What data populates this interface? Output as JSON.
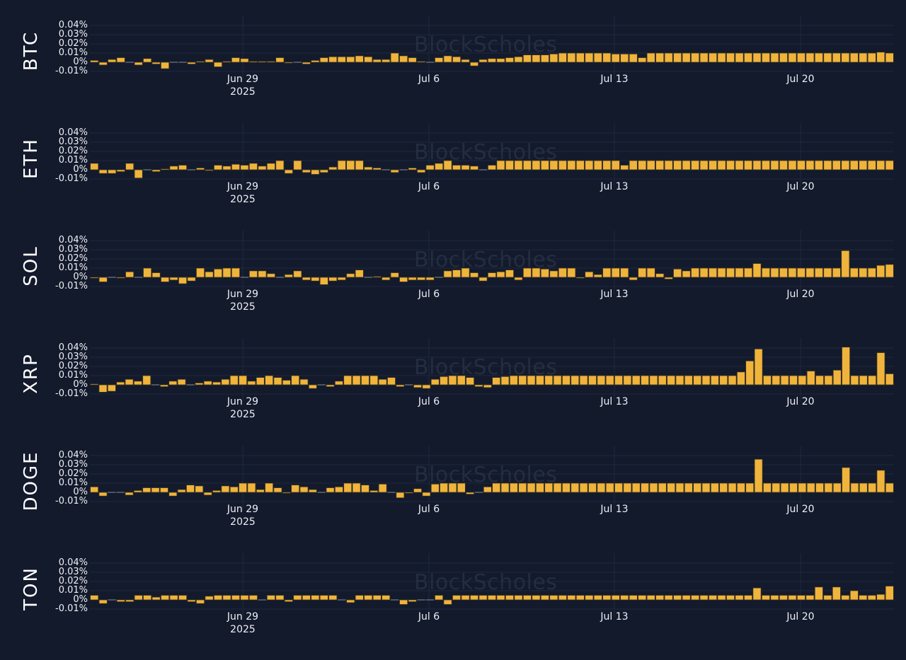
{
  "chart_meta": {
    "bar_color": "#f0b43c",
    "bar_outline": "#3b3420",
    "background": "#131a2c",
    "grid_color": "#1f2840",
    "watermark": "BlockScholes",
    "y_ticks": [
      "0.04%",
      "0.03%",
      "0.02%",
      "0.01%",
      "0%",
      "-0.01%"
    ],
    "x_ticks": [
      {
        "label": "Jun 29",
        "sub": "2025"
      },
      {
        "label": "Jul 6",
        "sub": ""
      },
      {
        "label": "Jul 13",
        "sub": ""
      },
      {
        "label": "Jul 20",
        "sub": ""
      }
    ]
  },
  "chart_data": [
    {
      "type": "bar",
      "title": "BTC",
      "ylabel": "BTC",
      "xlabel": "",
      "x_range": [
        "2025-06-24",
        "2025-07-24"
      ],
      "interval": "8h",
      "ylim": [
        -0.01,
        0.04
      ],
      "y_unit": "%",
      "values": [
        0.002,
        -0.003,
        0.003,
        0.005,
        0.0,
        -0.003,
        0.004,
        -0.002,
        -0.007,
        0.0,
        0.0,
        -0.002,
        0.001,
        0.003,
        -0.005,
        0.001,
        0.005,
        0.004,
        0.001,
        0.001,
        0.001,
        0.005,
        -0.001,
        0.0,
        -0.002,
        0.002,
        0.005,
        0.006,
        0.006,
        0.006,
        0.007,
        0.006,
        0.003,
        0.003,
        0.01,
        0.007,
        0.005,
        0.001,
        0.0,
        0.005,
        0.007,
        0.006,
        0.003,
        -0.004,
        0.003,
        0.004,
        0.004,
        0.005,
        0.006,
        0.008,
        0.008,
        0.008,
        0.009,
        0.01,
        0.01,
        0.01,
        0.01,
        0.01,
        0.01,
        0.009,
        0.009,
        0.009,
        0.005,
        0.01,
        0.01,
        0.01,
        0.01,
        0.01,
        0.01,
        0.01,
        0.01,
        0.01,
        0.01,
        0.01,
        0.01,
        0.01,
        0.01,
        0.01,
        0.01,
        0.01,
        0.01,
        0.01,
        0.01,
        0.01,
        0.01,
        0.01,
        0.01,
        0.01,
        0.01,
        0.011,
        0.01
      ]
    },
    {
      "type": "bar",
      "title": "ETH",
      "ylabel": "ETH",
      "xlabel": "",
      "x_range": [
        "2025-06-24",
        "2025-07-24"
      ],
      "interval": "8h",
      "ylim": [
        -0.01,
        0.04
      ],
      "y_unit": "%",
      "values": [
        0.007,
        -0.004,
        -0.004,
        -0.002,
        0.007,
        -0.009,
        0.0,
        -0.002,
        0.001,
        0.004,
        0.005,
        0.0,
        0.002,
        -0.001,
        0.005,
        0.004,
        0.006,
        0.005,
        0.007,
        0.004,
        0.007,
        0.01,
        -0.004,
        0.01,
        -0.003,
        -0.005,
        -0.003,
        0.003,
        0.01,
        0.01,
        0.01,
        0.003,
        0.002,
        0.0,
        -0.003,
        0.0,
        0.002,
        -0.003,
        0.005,
        0.007,
        0.01,
        0.005,
        0.005,
        0.004,
        0.0,
        0.005,
        0.01,
        0.01,
        0.01,
        0.01,
        0.01,
        0.01,
        0.01,
        0.01,
        0.01,
        0.01,
        0.01,
        0.01,
        0.01,
        0.01,
        0.005,
        0.01,
        0.01,
        0.01,
        0.01,
        0.01,
        0.01,
        0.01,
        0.01,
        0.01,
        0.01,
        0.01,
        0.01,
        0.01,
        0.01,
        0.01,
        0.01,
        0.01,
        0.01,
        0.01,
        0.01,
        0.01,
        0.01,
        0.01,
        0.01,
        0.01,
        0.01,
        0.01,
        0.01,
        0.01,
        0.01
      ]
    },
    {
      "type": "bar",
      "title": "SOL",
      "ylabel": "SOL",
      "xlabel": "",
      "x_range": [
        "2025-06-24",
        "2025-07-24"
      ],
      "interval": "8h",
      "ylim": [
        -0.01,
        0.04
      ],
      "y_unit": "%",
      "values": [
        -0.001,
        -0.005,
        0.0,
        -0.001,
        0.006,
        0.0,
        0.01,
        0.005,
        -0.005,
        -0.003,
        -0.007,
        -0.004,
        0.01,
        0.006,
        0.009,
        0.01,
        0.01,
        0.0,
        0.007,
        0.007,
        0.004,
        0.0,
        0.003,
        0.007,
        -0.003,
        -0.004,
        -0.008,
        -0.004,
        -0.003,
        0.004,
        0.008,
        0.0,
        0.001,
        -0.003,
        0.005,
        -0.005,
        -0.003,
        -0.003,
        -0.003,
        0.0,
        0.007,
        0.008,
        0.01,
        0.005,
        -0.004,
        0.005,
        0.006,
        0.008,
        -0.003,
        0.01,
        0.01,
        0.009,
        0.007,
        0.01,
        0.01,
        -0.001,
        0.006,
        0.003,
        0.01,
        0.01,
        0.01,
        -0.003,
        0.01,
        0.01,
        0.004,
        -0.002,
        0.009,
        0.007,
        0.01,
        0.01,
        0.01,
        0.01,
        0.01,
        0.01,
        0.01,
        0.015,
        0.01,
        0.01,
        0.01,
        0.01,
        0.01,
        0.01,
        0.01,
        0.01,
        0.01,
        0.029,
        0.01,
        0.01,
        0.01,
        0.013,
        0.014
      ]
    },
    {
      "type": "bar",
      "title": "XRP",
      "ylabel": "XRP",
      "xlabel": "",
      "x_range": [
        "2025-06-24",
        "2025-07-24"
      ],
      "interval": "8h",
      "ylim": [
        -0.01,
        0.04
      ],
      "y_unit": "%",
      "values": [
        0.001,
        -0.008,
        -0.007,
        0.003,
        0.006,
        0.004,
        0.01,
        0.0,
        -0.002,
        0.004,
        0.006,
        0.0,
        0.002,
        0.004,
        0.003,
        0.006,
        0.01,
        0.01,
        0.004,
        0.008,
        0.01,
        0.008,
        0.005,
        0.01,
        0.006,
        -0.004,
        0.0,
        -0.002,
        0.004,
        0.01,
        0.01,
        0.01,
        0.01,
        0.006,
        0.008,
        -0.002,
        0.0,
        -0.003,
        -0.004,
        0.006,
        0.009,
        0.01,
        0.01,
        0.008,
        -0.002,
        -0.003,
        0.008,
        0.009,
        0.01,
        0.01,
        0.01,
        0.01,
        0.01,
        0.01,
        0.01,
        0.01,
        0.01,
        0.01,
        0.01,
        0.01,
        0.01,
        0.01,
        0.01,
        0.01,
        0.01,
        0.01,
        0.01,
        0.01,
        0.01,
        0.01,
        0.01,
        0.01,
        0.01,
        0.01,
        0.014,
        0.026,
        0.039,
        0.01,
        0.01,
        0.01,
        0.01,
        0.01,
        0.015,
        0.01,
        0.01,
        0.016,
        0.041,
        0.01,
        0.01,
        0.01,
        0.035,
        0.012
      ]
    },
    {
      "type": "bar",
      "title": "DOGE",
      "ylabel": "DOGE",
      "xlabel": "",
      "x_range": [
        "2025-06-24",
        "2025-07-24"
      ],
      "interval": "8h",
      "ylim": [
        -0.01,
        0.04
      ],
      "y_unit": "%",
      "values": [
        0.006,
        -0.004,
        0.0,
        0.0,
        -0.003,
        0.002,
        0.005,
        0.005,
        0.005,
        -0.004,
        0.003,
        0.008,
        0.007,
        -0.003,
        0.002,
        0.007,
        0.006,
        0.01,
        0.01,
        0.003,
        0.01,
        0.005,
        -0.001,
        0.008,
        0.006,
        0.003,
        0.0,
        0.005,
        0.006,
        0.01,
        0.01,
        0.008,
        0.002,
        0.009,
        0.0,
        -0.006,
        -0.001,
        0.004,
        -0.004,
        0.009,
        0.01,
        0.01,
        0.01,
        -0.002,
        0.0,
        0.006,
        0.01,
        0.01,
        0.01,
        0.01,
        0.01,
        0.01,
        0.01,
        0.01,
        0.01,
        0.01,
        0.01,
        0.01,
        0.01,
        0.01,
        0.01,
        0.01,
        0.01,
        0.01,
        0.01,
        0.01,
        0.01,
        0.01,
        0.01,
        0.01,
        0.01,
        0.01,
        0.01,
        0.01,
        0.01,
        0.01,
        0.036,
        0.01,
        0.01,
        0.01,
        0.01,
        0.01,
        0.01,
        0.01,
        0.01,
        0.01,
        0.027,
        0.01,
        0.01,
        0.01,
        0.024,
        0.01
      ]
    },
    {
      "type": "bar",
      "title": "TON",
      "ylabel": "TON",
      "xlabel": "",
      "x_range": [
        "2025-06-24",
        "2025-07-24"
      ],
      "interval": "8h",
      "ylim": [
        -0.01,
        0.04
      ],
      "y_unit": "%",
      "values": [
        0.005,
        -0.004,
        0.0,
        -0.002,
        -0.002,
        0.005,
        0.005,
        0.003,
        0.005,
        0.005,
        0.005,
        -0.002,
        -0.004,
        0.004,
        0.005,
        0.005,
        0.005,
        0.005,
        0.005,
        0.0,
        0.005,
        0.005,
        -0.002,
        0.005,
        0.005,
        0.005,
        0.005,
        0.005,
        0.0,
        -0.003,
        0.005,
        0.005,
        0.005,
        0.005,
        0.0,
        -0.005,
        -0.002,
        0.0,
        0.0,
        0.005,
        -0.005,
        0.005,
        0.005,
        0.005,
        0.005,
        0.005,
        0.005,
        0.005,
        0.005,
        0.005,
        0.005,
        0.005,
        0.005,
        0.005,
        0.005,
        0.005,
        0.005,
        0.005,
        0.005,
        0.005,
        0.005,
        0.005,
        0.005,
        0.005,
        0.005,
        0.005,
        0.005,
        0.005,
        0.005,
        0.005,
        0.005,
        0.005,
        0.005,
        0.005,
        0.005,
        0.013,
        0.005,
        0.005,
        0.005,
        0.005,
        0.005,
        0.005,
        0.014,
        0.005,
        0.014,
        0.005,
        0.01,
        0.005,
        0.005,
        0.006,
        0.015
      ]
    }
  ]
}
